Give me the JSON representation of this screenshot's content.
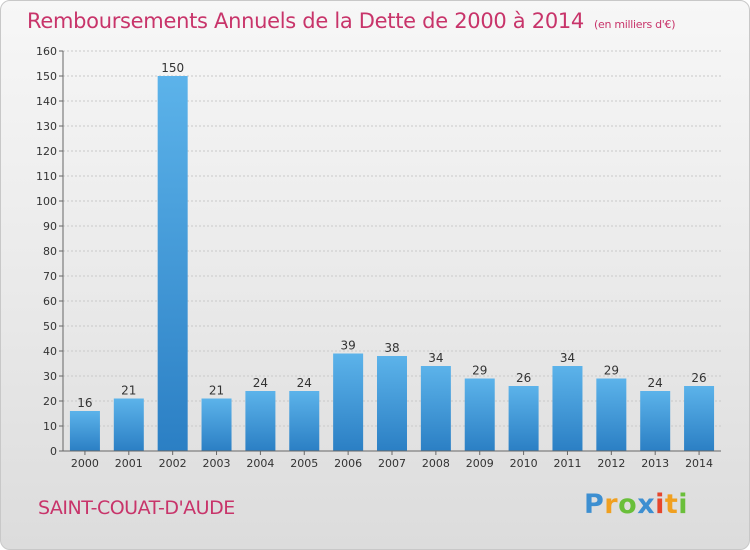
{
  "title": "Remboursements Annuels de la Dette de 2000 à 2014",
  "subtitle": "(en milliers d'€)",
  "commune": "SAINT-COUAT-D'AUDE",
  "logo_text": "Proxiti",
  "colors": {
    "title": "#c8346a",
    "bar_top": "#5cb3ea",
    "bar_bottom": "#2b7fc4",
    "grid": "#c9c9c9",
    "axis_text": "#333333"
  },
  "chart_data": {
    "type": "bar",
    "categories": [
      "2000",
      "2001",
      "2002",
      "2003",
      "2004",
      "2005",
      "2006",
      "2007",
      "2008",
      "2009",
      "2010",
      "2011",
      "2012",
      "2013",
      "2014"
    ],
    "values": [
      16,
      21,
      150,
      21,
      24,
      24,
      39,
      38,
      34,
      29,
      26,
      34,
      29,
      24,
      26
    ],
    "y_ticks": [
      0,
      10,
      20,
      30,
      40,
      50,
      60,
      70,
      80,
      90,
      100,
      110,
      120,
      130,
      140,
      150,
      160
    ],
    "ylim": [
      0,
      160
    ],
    "grid": true,
    "data_labels": true
  }
}
